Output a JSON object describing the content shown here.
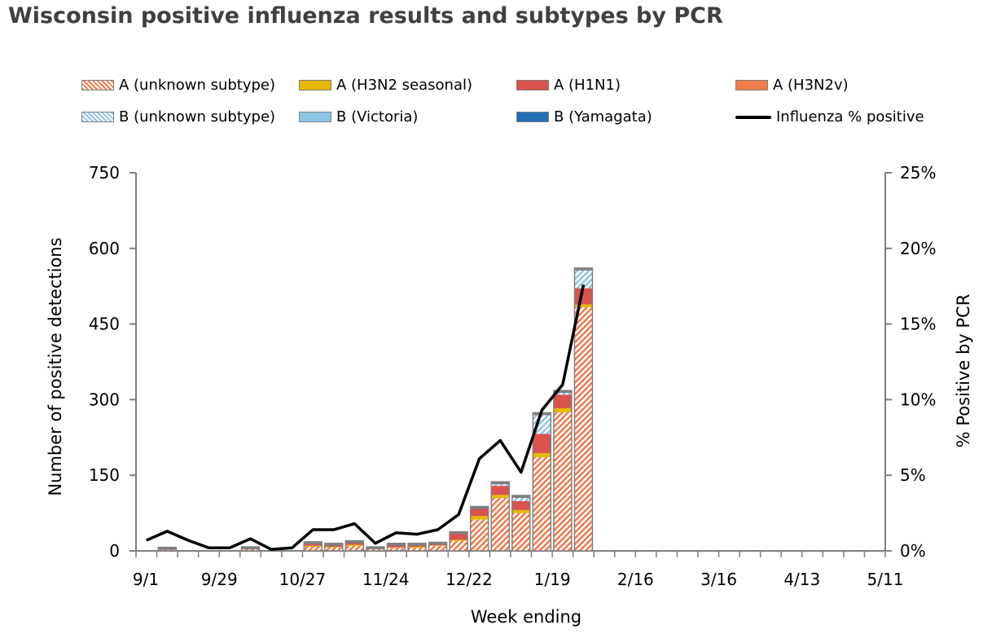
{
  "chart_data": {
    "type": "bar",
    "title": "Wisconsin positive influenza results and subtypes by PCR",
    "xlabel": "Week ending",
    "ylabel": "Number of positive detections",
    "y2label": "% Positive by PCR",
    "ylim": [
      0,
      750
    ],
    "y2lim": [
      0,
      25
    ],
    "yticks": [
      "0",
      "150",
      "300",
      "450",
      "600",
      "750"
    ],
    "y2ticks": [
      "0%",
      "5%",
      "10%",
      "15%",
      "20%",
      "25%"
    ],
    "xtick_labels": [
      "9/1",
      "9/29",
      "10/27",
      "11/24",
      "12/22",
      "1/19",
      "2/16",
      "3/16",
      "4/13",
      "5/11"
    ],
    "weeks_shown": 36,
    "legend": [
      {
        "name": "A (unknown subtype)",
        "color": "#f07a4a",
        "pattern": "hatch-orange"
      },
      {
        "name": "A (H3N2 seasonal)",
        "color": "#e6b800",
        "pattern": "solid"
      },
      {
        "name": "A (H1N1)",
        "color": "#d9534f",
        "pattern": "solid"
      },
      {
        "name": "A (H3N2v)",
        "color": "#f07a4a",
        "pattern": "solid"
      },
      {
        "name": "B (unknown subtype)",
        "color": "#8fc3e6",
        "pattern": "hatch-blue"
      },
      {
        "name": "B (Victoria)",
        "color": "#8fc3e6",
        "pattern": "solid"
      },
      {
        "name": "B (Yamagata)",
        "color": "#1f6fb5",
        "pattern": "solid"
      },
      {
        "name": "Influenza % positive",
        "color": "#000000",
        "pattern": "line"
      }
    ],
    "bars": [
      [
        0,
        0,
        0,
        0,
        0,
        0,
        0
      ],
      [
        2,
        0,
        5,
        0,
        0,
        0,
        0
      ],
      [
        0,
        0,
        0,
        0,
        0,
        0,
        0
      ],
      [
        0,
        0,
        0,
        0,
        0,
        0,
        0
      ],
      [
        0,
        0,
        0,
        0,
        0,
        0,
        0
      ],
      [
        3,
        0,
        5,
        0,
        0,
        0,
        0
      ],
      [
        0,
        0,
        0,
        0,
        0,
        0,
        0
      ],
      [
        0,
        0,
        0,
        0,
        0,
        0,
        0
      ],
      [
        8,
        2,
        6,
        0,
        2,
        0,
        0
      ],
      [
        7,
        1,
        5,
        0,
        2,
        0,
        0
      ],
      [
        10,
        2,
        8,
        0,
        0,
        0,
        0
      ],
      [
        4,
        1,
        3,
        0,
        0,
        0,
        0
      ],
      [
        6,
        1,
        7,
        0,
        1,
        0,
        0
      ],
      [
        6,
        2,
        6,
        0,
        1,
        0,
        0
      ],
      [
        10,
        1,
        5,
        0,
        1,
        0,
        0
      ],
      [
        20,
        2,
        12,
        0,
        4,
        0,
        0
      ],
      [
        62,
        7,
        15,
        0,
        4,
        0,
        0
      ],
      [
        105,
        6,
        18,
        0,
        8,
        0,
        0
      ],
      [
        75,
        6,
        18,
        0,
        7,
        0,
        4
      ],
      [
        186,
        8,
        38,
        0,
        42,
        0,
        0
      ],
      [
        275,
        8,
        27,
        0,
        8,
        0,
        0
      ],
      [
        483,
        6,
        32,
        0,
        40,
        0,
        0
      ]
    ],
    "pct_positive": [
      0.7,
      1.3,
      0.7,
      0.2,
      0.2,
      0.8,
      0.1,
      0.2,
      1.4,
      1.4,
      1.8,
      0.5,
      1.2,
      1.1,
      1.4,
      2.4,
      6.1,
      7.3,
      5.2,
      9.3,
      11.0,
      17.6
    ]
  }
}
